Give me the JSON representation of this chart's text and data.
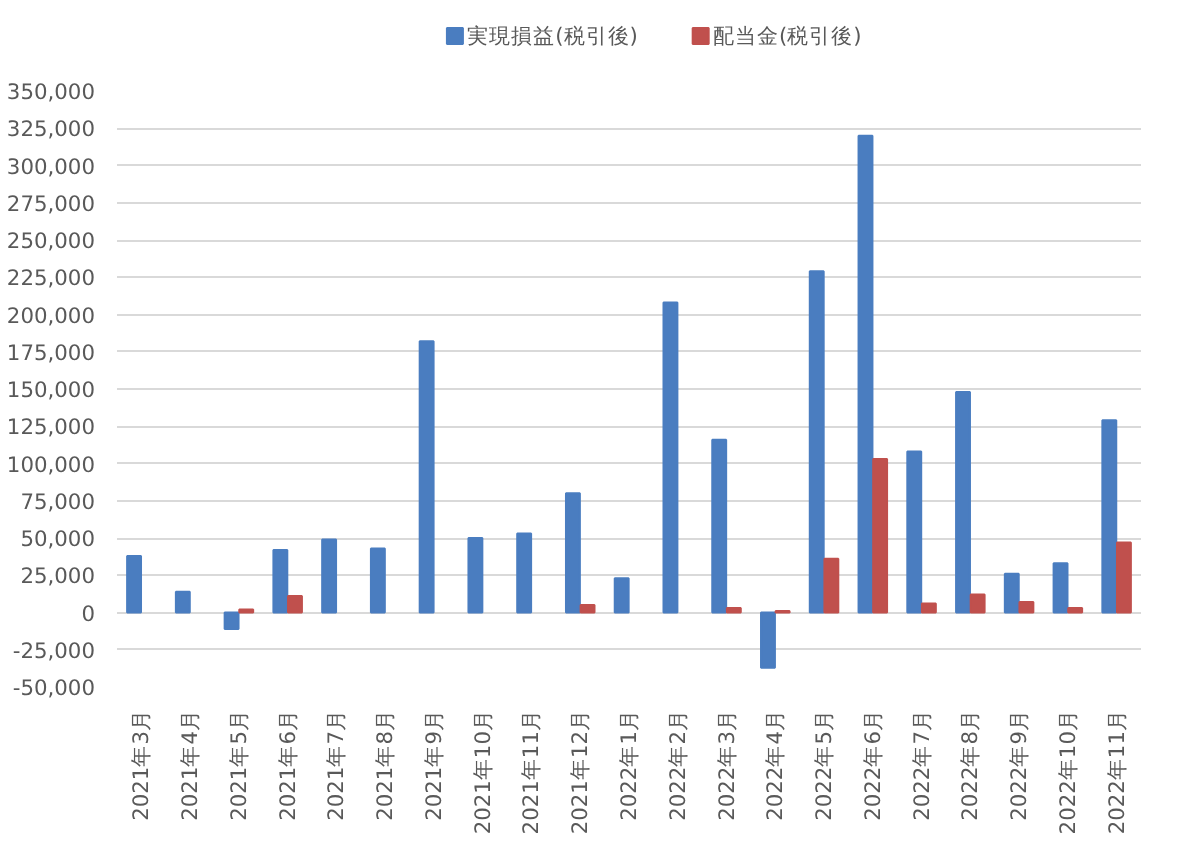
{
  "chart_data": {
    "type": "bar",
    "categories": [
      "2021年3月",
      "2021年4月",
      "2021年5月",
      "2021年6月",
      "2021年7月",
      "2021年8月",
      "2021年9月",
      "2021年10月",
      "2021年11月",
      "2021年12月",
      "2022年1月",
      "2022年2月",
      "2022年3月",
      "2022年4月",
      "2022年5月",
      "2022年6月",
      "2022年7月",
      "2022年8月",
      "2022年9月",
      "2022年10月",
      "2022年11月"
    ],
    "series": [
      {
        "name": "実現損益(税引後)",
        "color": "#4a7dc0",
        "values": [
          38000,
          14000,
          -11000,
          42000,
          49000,
          43000,
          182000,
          50000,
          53000,
          80000,
          23000,
          208000,
          116000,
          -37000,
          229000,
          320000,
          108000,
          148000,
          26000,
          33000,
          129000
        ]
      },
      {
        "name": "配当金(税引後)",
        "color": "#c0504d",
        "values": [
          null,
          null,
          2000,
          11000,
          null,
          null,
          null,
          null,
          null,
          5000,
          null,
          null,
          3000,
          1000,
          36000,
          103000,
          6000,
          12000,
          7000,
          3000,
          47000
        ]
      }
    ],
    "ylim": [
      -50000,
      350000
    ],
    "yticks": [
      {
        "value": -50000,
        "label": "-50,000"
      },
      {
        "value": -25000,
        "label": "-25,000"
      },
      {
        "value": 0,
        "label": "0"
      },
      {
        "value": 25000,
        "label": "25,000"
      },
      {
        "value": 50000,
        "label": "50,000"
      },
      {
        "value": 75000,
        "label": "75,000"
      },
      {
        "value": 100000,
        "label": "100,000"
      },
      {
        "value": 125000,
        "label": "125,000"
      },
      {
        "value": 150000,
        "label": "150,000"
      },
      {
        "value": 175000,
        "label": "175,000"
      },
      {
        "value": 200000,
        "label": "200,000"
      },
      {
        "value": 225000,
        "label": "225,000"
      },
      {
        "value": 250000,
        "label": "250,000"
      },
      {
        "value": 275000,
        "label": "275,000"
      },
      {
        "value": 300000,
        "label": "300,000"
      },
      {
        "value": 325000,
        "label": "325,000"
      },
      {
        "value": 350000,
        "label": "350,000"
      }
    ],
    "grid": "y",
    "legend": "top"
  }
}
